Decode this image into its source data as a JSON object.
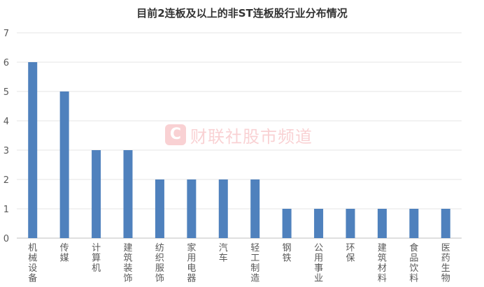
{
  "chart_data": {
    "type": "bar",
    "title": "目前2连板及以上的非ST连板股行业分布情况",
    "categories": [
      "机械设备",
      "传媒",
      "计算机",
      "建筑装饰",
      "纺织服饰",
      "家用电器",
      "汽车",
      "轻工制造",
      "钢铁",
      "公用事业",
      "环保",
      "建筑材料",
      "食品饮料",
      "医药生物"
    ],
    "values": [
      6,
      5,
      3,
      3,
      2,
      2,
      2,
      2,
      1,
      1,
      1,
      1,
      1,
      1
    ],
    "ylim": [
      0,
      7
    ],
    "yticks": [
      0,
      1,
      2,
      3,
      4,
      5,
      6,
      7
    ],
    "grid": true,
    "legend": "none",
    "bar_color": "#4f81bd",
    "grid_color": "#e6e6e6"
  },
  "watermark": {
    "logo": "C",
    "text": "财联社股市频道"
  }
}
